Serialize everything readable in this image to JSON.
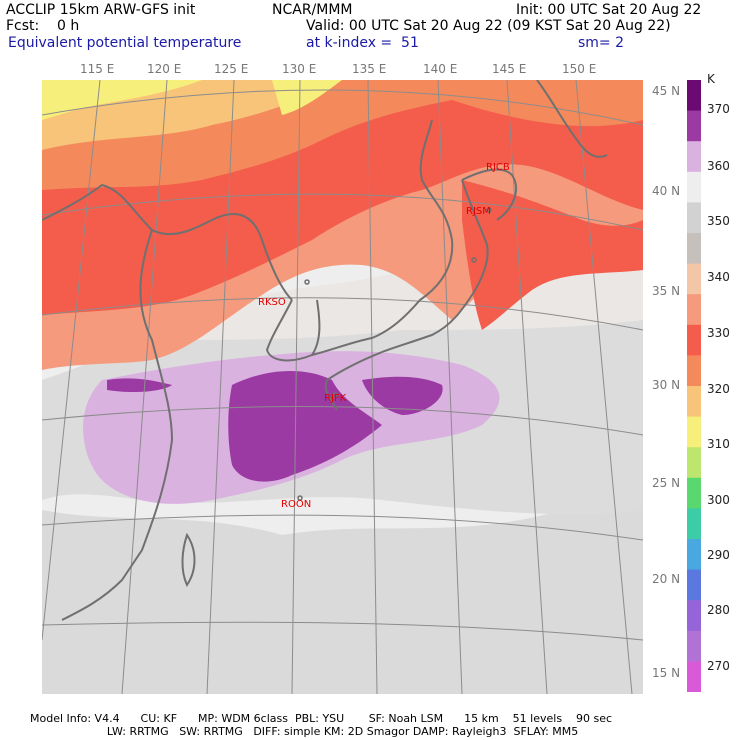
{
  "header": {
    "model": "ACCLIP 15km ARW-GFS init",
    "org": "NCAR/MMM",
    "init": "Init: 00 UTC Sat 20 Aug 22",
    "fcst": "Fcst:    0 h",
    "valid": "Valid: 00 UTC Sat 20 Aug 22 (09 KST Sat 20 Aug 22)",
    "field": "Equivalent potential temperature",
    "level": "at k-index =  51",
    "smooth": "sm= 2"
  },
  "map": {
    "lon_labels": [
      "115 E",
      "120 E",
      "125 E",
      "130 E",
      "135 E",
      "140 E",
      "145 E",
      "150 E"
    ],
    "lat_labels": [
      "45 N",
      "40 N",
      "35 N",
      "30 N",
      "25 N",
      "20 N",
      "15 N"
    ],
    "stations": [
      "RJCB",
      "RJSM",
      "RKSO",
      "RJFK",
      "ROON"
    ]
  },
  "colorbar": {
    "unit": "K",
    "ticks": [
      "370",
      "360",
      "350",
      "340",
      "330",
      "320",
      "310",
      "300",
      "290",
      "280",
      "270"
    ],
    "colors": [
      "#6a0a72",
      "#9c3aa4",
      "#d9b2e0",
      "#eeeeee",
      "#d2d2d2",
      "#c6c0bc",
      "#f3c6a8",
      "#f59a7c",
      "#f45c4c",
      "#f48a5c",
      "#f7c47a",
      "#f7ef7c",
      "#bde66e",
      "#5ad870",
      "#3ccca6",
      "#49a8e0",
      "#5a78e0",
      "#9464d8",
      "#b072d4",
      "#d85ad8"
    ]
  },
  "footer": {
    "line1": "Model Info: V4.4      CU: KF      MP: WDM 6class  PBL: YSU       SF: Noah LSM      15 km    51 levels    90 sec",
    "line2": "                      LW: RRTMG   SW: RRTMG   DIFF: simple KM: 2D Smagor DAMP: Rayleigh3  SFLAY: MM5"
  }
}
